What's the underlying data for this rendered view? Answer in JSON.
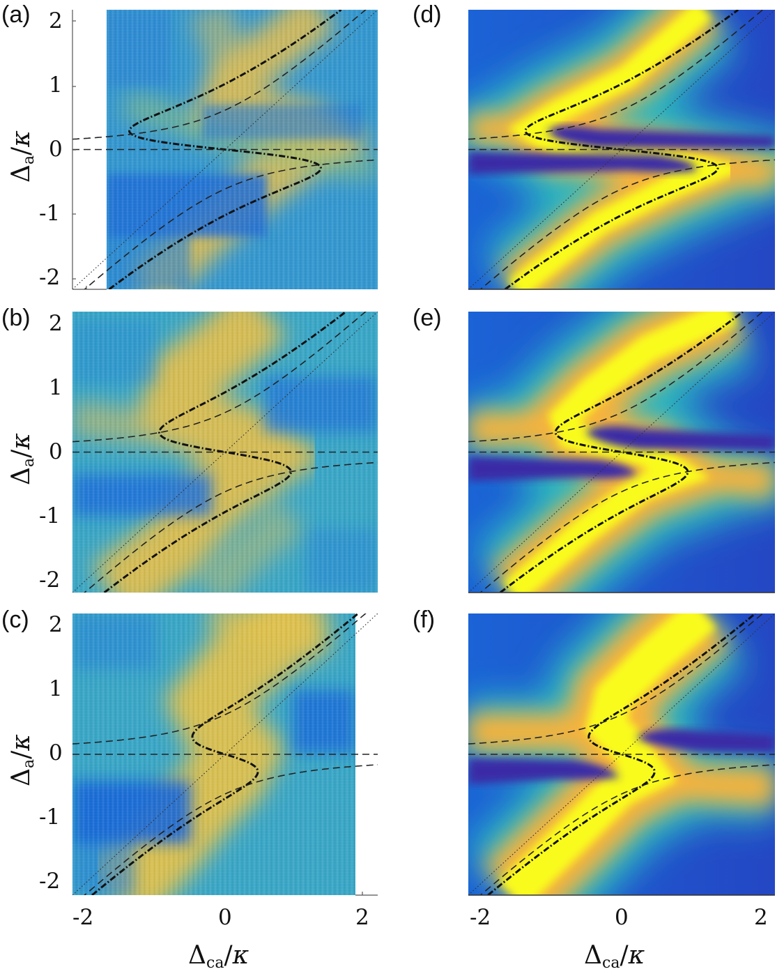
{
  "figure": {
    "panels": [
      {
        "id": "a",
        "label": "(a)",
        "kind": "experiment"
      },
      {
        "id": "b",
        "label": "(b)",
        "kind": "experiment"
      },
      {
        "id": "c",
        "label": "(c)",
        "kind": "experiment"
      },
      {
        "id": "d",
        "label": "(d)",
        "kind": "theory"
      },
      {
        "id": "e",
        "label": "(e)",
        "kind": "theory"
      },
      {
        "id": "f",
        "label": "(f)",
        "kind": "theory"
      }
    ],
    "ylabel": {
      "symbol": "Δ",
      "sub": "a",
      "slash": "/",
      "kappa": "κ"
    },
    "xlabel": {
      "symbol": "Δ",
      "sub": "ca",
      "slash": "/",
      "kappa": "κ"
    },
    "yticks": [
      "2",
      "1",
      "0",
      "-1",
      "-2"
    ],
    "xticks": [
      "-2",
      "0",
      "2"
    ]
  },
  "chart_data": [
    {
      "type": "heatmap",
      "panel": "(a)",
      "title": "",
      "xlabel": "Δca/κ",
      "ylabel": "Δa/κ",
      "xlim": [
        -2.2,
        2.2
      ],
      "ylim": [
        -2.2,
        2.2
      ],
      "xticks": [
        -2,
        0,
        2
      ],
      "yticks": [
        -2,
        -1,
        0,
        1,
        2
      ],
      "data_extent_x": [
        -1.7,
        2.2
      ],
      "colormap": "parula",
      "overlay_curves": [
        {
          "name": "S-shaped dash-dot curve",
          "style": "dash-dot",
          "turning_points": [
            [
              -1.35,
              0.35
            ],
            [
              1.35,
              -0.35
            ]
          ]
        },
        {
          "name": "upper hyperbola branch",
          "style": "dashed",
          "y_at_left_edge": 0.55
        },
        {
          "name": "lower hyperbola branch",
          "style": "dashed",
          "y_at_right_edge": -0.55
        },
        {
          "name": "Δa = 0",
          "style": "dashed",
          "y": 0
        },
        {
          "name": "diagonal Δa = Δca",
          "style": "dotted"
        }
      ],
      "grid": false
    },
    {
      "type": "heatmap",
      "panel": "(b)",
      "xlabel": "Δca/κ",
      "ylabel": "Δa/κ",
      "xlim": [
        -2.2,
        2.2
      ],
      "ylim": [
        -2.2,
        2.2
      ],
      "xticks": [
        -2,
        0,
        2
      ],
      "yticks": [
        -2,
        -1,
        0,
        1,
        2
      ],
      "colormap": "parula",
      "overlay_curves": [
        {
          "name": "S-shaped dash-dot curve",
          "style": "dash-dot",
          "turning_points": [
            [
              -0.9,
              0.4
            ],
            [
              0.9,
              -0.4
            ]
          ]
        },
        {
          "name": "upper hyperbola branch",
          "style": "dashed",
          "y_at_left_edge": 0.55
        },
        {
          "name": "lower hyperbola branch",
          "style": "dashed",
          "y_at_right_edge": -0.55
        },
        {
          "name": "Δa = 0",
          "style": "dashed",
          "y": 0
        },
        {
          "name": "diagonal Δa = Δca",
          "style": "dotted"
        }
      ],
      "grid": false
    },
    {
      "type": "heatmap",
      "panel": "(c)",
      "xlabel": "Δca/κ",
      "ylabel": "Δa/κ",
      "xlim": [
        -2.2,
        2.2
      ],
      "ylim": [
        -2.2,
        2.2
      ],
      "xticks": [
        -2,
        0,
        2
      ],
      "yticks": [
        -2,
        -1,
        0,
        1,
        2
      ],
      "data_extent_x": [
        -2.2,
        1.9
      ],
      "colormap": "parula",
      "overlay_curves": [
        {
          "name": "S-shaped dash-dot curve",
          "style": "dash-dot",
          "turning_points": [
            [
              -0.4,
              0.4
            ],
            [
              0.4,
              -0.4
            ]
          ]
        },
        {
          "name": "upper hyperbola branch",
          "style": "dashed",
          "y_at_left_edge": 0.55
        },
        {
          "name": "lower hyperbola branch",
          "style": "dashed",
          "y_at_right_edge": -0.55
        },
        {
          "name": "Δa = 0",
          "style": "dashed",
          "y": 0
        },
        {
          "name": "diagonal Δa = Δca",
          "style": "dotted"
        }
      ],
      "grid": false
    },
    {
      "type": "heatmap",
      "panel": "(d)",
      "xlabel": "Δca/κ",
      "xlim": [
        -2.2,
        2.2
      ],
      "ylim": [
        -2.2,
        2.2
      ],
      "xticks": [
        -2,
        0,
        2
      ],
      "colormap": "parula",
      "overlay_curves": [
        {
          "name": "S-shaped dash-dot curve",
          "style": "dash-dot",
          "turning_points": [
            [
              -1.35,
              0.35
            ],
            [
              1.35,
              -0.35
            ]
          ]
        },
        {
          "name": "upper hyperbola branch",
          "style": "dashed",
          "y_at_left_edge": 0.55
        },
        {
          "name": "lower hyperbola branch",
          "style": "dashed",
          "y_at_right_edge": -0.55
        },
        {
          "name": "Δa = 0",
          "style": "dashed",
          "y": 0
        },
        {
          "name": "diagonal Δa = Δca",
          "style": "dotted"
        }
      ],
      "grid": false
    },
    {
      "type": "heatmap",
      "panel": "(e)",
      "xlabel": "Δca/κ",
      "xlim": [
        -2.2,
        2.2
      ],
      "ylim": [
        -2.2,
        2.2
      ],
      "xticks": [
        -2,
        0,
        2
      ],
      "colormap": "parula",
      "overlay_curves": [
        {
          "name": "S-shaped dash-dot curve",
          "style": "dash-dot",
          "turning_points": [
            [
              -0.9,
              0.4
            ],
            [
              0.9,
              -0.4
            ]
          ]
        },
        {
          "name": "upper hyperbola branch",
          "style": "dashed",
          "y_at_left_edge": 0.55
        },
        {
          "name": "lower hyperbola branch",
          "style": "dashed",
          "y_at_right_edge": -0.55
        },
        {
          "name": "Δa = 0",
          "style": "dashed",
          "y": 0
        },
        {
          "name": "diagonal Δa = Δca",
          "style": "dotted"
        }
      ],
      "grid": false
    },
    {
      "type": "heatmap",
      "panel": "(f)",
      "xlabel": "Δca/κ",
      "xlim": [
        -2.2,
        2.2
      ],
      "ylim": [
        -2.2,
        2.2
      ],
      "xticks": [
        -2,
        0,
        2
      ],
      "colormap": "parula",
      "overlay_curves": [
        {
          "name": "S-shaped dash-dot curve",
          "style": "dash-dot",
          "turning_points": [
            [
              -0.4,
              0.4
            ],
            [
              0.4,
              -0.4
            ]
          ]
        },
        {
          "name": "upper hyperbola branch",
          "style": "dashed",
          "y_at_left_edge": 0.55
        },
        {
          "name": "lower hyperbola branch",
          "style": "dashed",
          "y_at_right_edge": -0.55
        },
        {
          "name": "Δa = 0",
          "style": "dashed",
          "y": 0
        },
        {
          "name": "diagonal Δa = Δca",
          "style": "dotted"
        }
      ],
      "grid": false
    }
  ],
  "colors": {
    "dark_blue": "#3e26a8",
    "blue": "#1f6fd8",
    "cyan": "#2bb0c8",
    "teal_green": "#4fbf8a",
    "orange": "#f5b940",
    "yellow": "#f9fb14",
    "exp_blue": "#2f86d6",
    "exp_teal": "#3fb0b8",
    "exp_yellow": "#e8c24a"
  }
}
